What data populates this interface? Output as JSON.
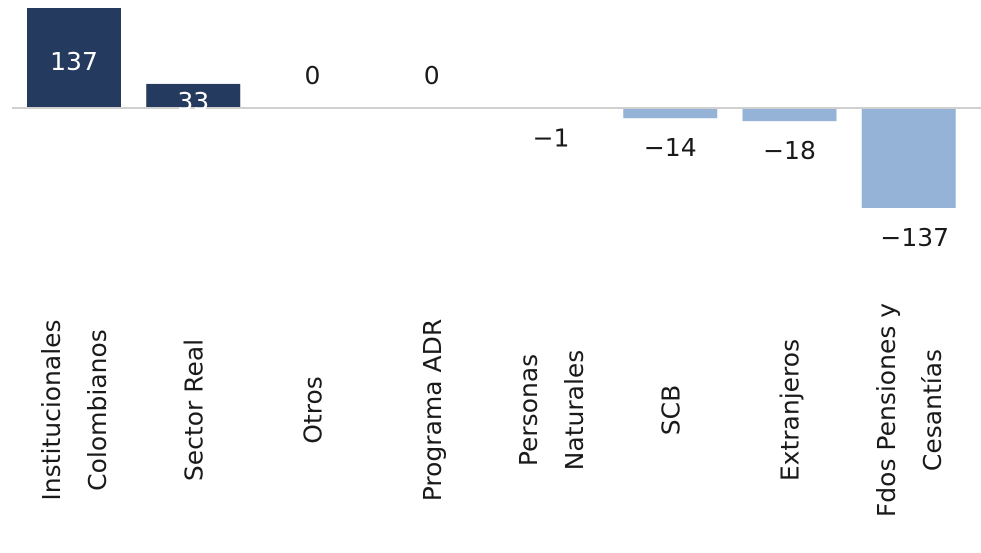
{
  "chart_data": {
    "type": "bar",
    "title": "",
    "xlabel": "",
    "ylabel": "",
    "categories": [
      [
        "Institucionales",
        "Colombianos"
      ],
      [
        "Sector Real"
      ],
      [
        "Otros"
      ],
      [
        "Programa ADR"
      ],
      [
        "Personas",
        "Naturales"
      ],
      [
        "SCB"
      ],
      [
        "Extranjeros"
      ],
      [
        "Fdos Pensiones y",
        "Cesantías"
      ]
    ],
    "values": [
      137,
      33,
      0,
      0,
      -1,
      -14,
      -18,
      -137
    ],
    "value_labels": [
      "137",
      "33",
      "0",
      "0",
      "-1",
      "-14",
      "-18",
      "-137"
    ],
    "ylim": [
      -137,
      137
    ],
    "grid": false,
    "legend": "none",
    "colors": {
      "positive": "#243a5e",
      "negative": "#95b3d7",
      "axis": "#d0d0d0",
      "inside_label": "#ffffff",
      "label": "#1a1a1a"
    }
  }
}
